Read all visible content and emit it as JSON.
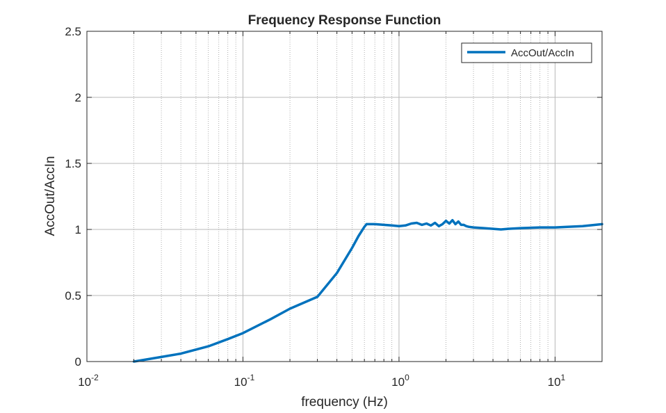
{
  "chart_data": {
    "type": "line",
    "title": "Frequency Response Function",
    "xlabel": "frequency (Hz)",
    "ylabel": "AccOut/AccIn",
    "xscale": "log",
    "xlim": [
      0.01,
      20
    ],
    "ylim": [
      0,
      2.5
    ],
    "grid": true,
    "minor_grid_x": true,
    "legend_location": "top-right",
    "x_ticks": [
      {
        "base": "10",
        "exp": "-2"
      },
      {
        "base": "10",
        "exp": "-1"
      },
      {
        "base": "10",
        "exp": "0"
      },
      {
        "base": "10",
        "exp": "1"
      }
    ],
    "y_ticks": [
      "0",
      "0.5",
      "1",
      "1.5",
      "2",
      "2.5"
    ],
    "series": [
      {
        "name": "AccOut/AccIn",
        "color": "#0072BD",
        "x": [
          0.02,
          0.03,
          0.04,
          0.06,
          0.08,
          0.1,
          0.15,
          0.2,
          0.3,
          0.4,
          0.5,
          0.55,
          0.6,
          0.62,
          0.7,
          0.8,
          0.9,
          1.0,
          1.1,
          1.2,
          1.3,
          1.4,
          1.5,
          1.6,
          1.7,
          1.8,
          1.9,
          2.0,
          2.1,
          2.2,
          2.3,
          2.4,
          2.5,
          2.6,
          2.7,
          2.8,
          3.0,
          3.5,
          4.0,
          4.5,
          5.0,
          6.0,
          8.0,
          10.0,
          12.0,
          15.0,
          20.0
        ],
        "y": [
          0.0,
          0.035,
          0.06,
          0.115,
          0.17,
          0.215,
          0.32,
          0.4,
          0.49,
          0.67,
          0.86,
          0.95,
          1.02,
          1.04,
          1.04,
          1.035,
          1.03,
          1.025,
          1.03,
          1.045,
          1.05,
          1.035,
          1.045,
          1.03,
          1.05,
          1.025,
          1.04,
          1.065,
          1.045,
          1.07,
          1.04,
          1.06,
          1.035,
          1.035,
          1.025,
          1.02,
          1.015,
          1.01,
          1.005,
          1.0,
          1.005,
          1.01,
          1.015,
          1.015,
          1.02,
          1.025,
          1.04
        ]
      }
    ]
  }
}
